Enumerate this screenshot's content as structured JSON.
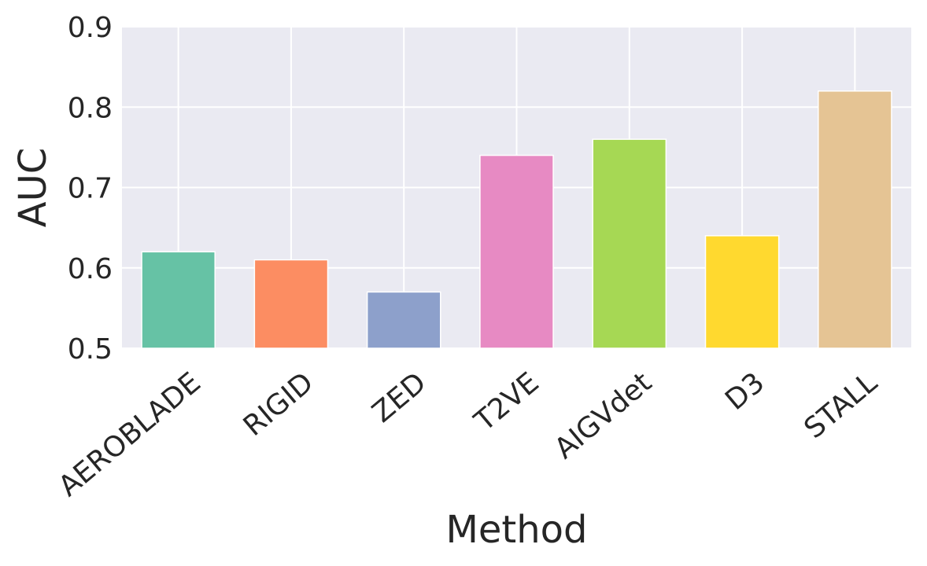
{
  "chart_data": {
    "type": "bar",
    "title": "",
    "xlabel": "Method",
    "ylabel": "AUC",
    "categories": [
      "AEROBLADE",
      "RIGID",
      "ZED",
      "T2VE",
      "AIGVdet",
      "D3",
      "STALL"
    ],
    "values": [
      0.62,
      0.61,
      0.57,
      0.74,
      0.76,
      0.64,
      0.82
    ],
    "colors": [
      "#66c2a5",
      "#fc8d62",
      "#8da0cb",
      "#e78ac3",
      "#a6d854",
      "#ffd92f",
      "#e5c494"
    ],
    "ylim": [
      0.5,
      0.9
    ],
    "yticks": [
      "0.5",
      "0.6",
      "0.7",
      "0.8",
      "0.9"
    ],
    "grid": true,
    "background": "#eaeaf2"
  }
}
